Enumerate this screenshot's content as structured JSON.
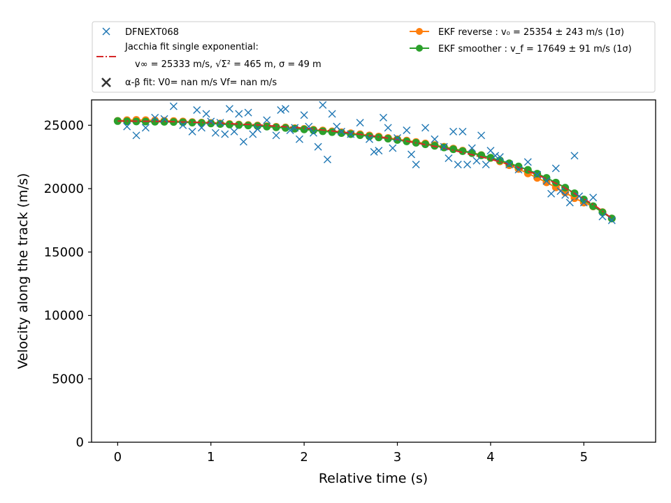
{
  "chart_data": {
    "type": "scatter",
    "xlabel": "Relative time (s)",
    "ylabel": "Velocity along the track (m/s)",
    "xlim": [
      -0.28,
      5.77
    ],
    "ylim": [
      0,
      27000
    ],
    "xticks": [
      0,
      1,
      2,
      3,
      4,
      5
    ],
    "yticks": [
      0,
      5000,
      10000,
      15000,
      20000,
      25000
    ],
    "grid": false,
    "legend_position": "top",
    "legend": {
      "dfn_label": "DFNEXT068",
      "jacchia_line1": "Jacchia fit single exponential:",
      "jacchia_line2": "v∞ = 25333 m/s, √Σ² = 465 m, σ = 49 m",
      "alphabeta_label": "α-β fit: V0= nan m/s   Vf= nan m/s",
      "ekf_reverse_label": "EKF reverse : v₀ =  25354 ± 243 m/s (1σ)",
      "ekf_smoother_label": "EKF smoother : v_f =  17649 ± 91 m/s (1σ)"
    },
    "colors": {
      "dfn": "#1f77b4",
      "jacchia": "#d62728",
      "ekf_reverse": "#ff7f0e",
      "ekf_smoother": "#2ca02c",
      "alphabeta": "#333333"
    },
    "series": [
      {
        "name": "DFNEXT068",
        "marker": "x",
        "points": [
          [
            0.1,
            24900
          ],
          [
            0.2,
            24200
          ],
          [
            0.3,
            24800
          ],
          [
            0.4,
            25600
          ],
          [
            0.5,
            25500
          ],
          [
            0.6,
            26500
          ],
          [
            0.7,
            25000
          ],
          [
            0.8,
            24500
          ],
          [
            0.85,
            26200
          ],
          [
            0.9,
            24800
          ],
          [
            0.95,
            25900
          ],
          [
            1.0,
            25300
          ],
          [
            1.05,
            24400
          ],
          [
            1.1,
            25200
          ],
          [
            1.15,
            24300
          ],
          [
            1.2,
            26300
          ],
          [
            1.25,
            24500
          ],
          [
            1.3,
            25900
          ],
          [
            1.35,
            23700
          ],
          [
            1.4,
            26000
          ],
          [
            1.45,
            24300
          ],
          [
            1.5,
            24700
          ],
          [
            1.6,
            25400
          ],
          [
            1.7,
            24200
          ],
          [
            1.75,
            26200
          ],
          [
            1.8,
            26300
          ],
          [
            1.85,
            24600
          ],
          [
            1.9,
            24800
          ],
          [
            1.95,
            23900
          ],
          [
            2.0,
            25800
          ],
          [
            2.05,
            24900
          ],
          [
            2.1,
            24400
          ],
          [
            2.15,
            23300
          ],
          [
            2.2,
            26600
          ],
          [
            2.25,
            22300
          ],
          [
            2.3,
            25900
          ],
          [
            2.35,
            24900
          ],
          [
            2.4,
            24500
          ],
          [
            2.5,
            24300
          ],
          [
            2.6,
            25200
          ],
          [
            2.7,
            23900
          ],
          [
            2.75,
            22900
          ],
          [
            2.8,
            23000
          ],
          [
            2.85,
            25600
          ],
          [
            2.9,
            24800
          ],
          [
            2.95,
            23200
          ],
          [
            3.0,
            24000
          ],
          [
            3.1,
            24600
          ],
          [
            3.15,
            22700
          ],
          [
            3.2,
            21900
          ],
          [
            3.3,
            24800
          ],
          [
            3.4,
            23900
          ],
          [
            3.5,
            23300
          ],
          [
            3.55,
            22400
          ],
          [
            3.6,
            24500
          ],
          [
            3.65,
            21900
          ],
          [
            3.7,
            24500
          ],
          [
            3.75,
            21900
          ],
          [
            3.8,
            23200
          ],
          [
            3.85,
            22200
          ],
          [
            3.9,
            24200
          ],
          [
            3.95,
            21900
          ],
          [
            4.0,
            23000
          ],
          [
            4.05,
            22600
          ],
          [
            4.1,
            22500
          ],
          [
            4.2,
            21900
          ],
          [
            4.3,
            21500
          ],
          [
            4.4,
            22100
          ],
          [
            4.5,
            21100
          ],
          [
            4.6,
            20600
          ],
          [
            4.65,
            19600
          ],
          [
            4.7,
            21600
          ],
          [
            4.75,
            19800
          ],
          [
            4.8,
            19500
          ],
          [
            4.85,
            18900
          ],
          [
            4.9,
            22600
          ],
          [
            4.95,
            19400
          ],
          [
            5.0,
            18900
          ],
          [
            5.1,
            19300
          ],
          [
            5.2,
            17800
          ],
          [
            5.3,
            17500
          ]
        ]
      },
      {
        "name": "Jacchia fit single exponential",
        "marker": "dashdot",
        "points": [
          [
            0,
            25333
          ],
          [
            0.5,
            25300
          ],
          [
            1.0,
            25200
          ],
          [
            1.5,
            25030
          ],
          [
            2.0,
            24780
          ],
          [
            2.5,
            24390
          ],
          [
            3.0,
            23880
          ],
          [
            3.5,
            23200
          ],
          [
            4.0,
            22330
          ],
          [
            4.25,
            21800
          ],
          [
            4.5,
            21100
          ],
          [
            4.75,
            20250
          ],
          [
            5.0,
            19200
          ],
          [
            5.15,
            18500
          ],
          [
            5.3,
            17649
          ]
        ]
      },
      {
        "name": "EKF reverse",
        "marker": "o",
        "points": [
          [
            0,
            25350
          ],
          [
            0.1,
            25400
          ],
          [
            0.2,
            25420
          ],
          [
            0.3,
            25400
          ],
          [
            0.4,
            25380
          ],
          [
            0.5,
            25350
          ],
          [
            0.6,
            25330
          ],
          [
            0.7,
            25300
          ],
          [
            0.8,
            25250
          ],
          [
            0.9,
            25210
          ],
          [
            1.0,
            25180
          ],
          [
            1.1,
            25140
          ],
          [
            1.2,
            25100
          ],
          [
            1.3,
            25060
          ],
          [
            1.4,
            25020
          ],
          [
            1.5,
            24980
          ],
          [
            1.6,
            24930
          ],
          [
            1.7,
            24880
          ],
          [
            1.8,
            24830
          ],
          [
            1.9,
            24770
          ],
          [
            2.0,
            24710
          ],
          [
            2.1,
            24650
          ],
          [
            2.2,
            24590
          ],
          [
            2.3,
            24520
          ],
          [
            2.4,
            24450
          ],
          [
            2.5,
            24370
          ],
          [
            2.6,
            24290
          ],
          [
            2.7,
            24200
          ],
          [
            2.8,
            24110
          ],
          [
            2.9,
            24000
          ],
          [
            3.0,
            23900
          ],
          [
            3.1,
            23790
          ],
          [
            3.2,
            23680
          ],
          [
            3.3,
            23560
          ],
          [
            3.4,
            23440
          ],
          [
            3.5,
            23300
          ],
          [
            3.6,
            23160
          ],
          [
            3.7,
            23000
          ],
          [
            3.8,
            22840
          ],
          [
            3.9,
            22650
          ],
          [
            4.0,
            22420
          ],
          [
            4.1,
            22150
          ],
          [
            4.2,
            21850
          ],
          [
            4.3,
            21550
          ],
          [
            4.4,
            21200
          ],
          [
            4.5,
            20850
          ],
          [
            4.6,
            20500
          ],
          [
            4.7,
            20100
          ],
          [
            4.8,
            19700
          ],
          [
            4.9,
            19250
          ],
          [
            5.0,
            18900
          ],
          [
            5.1,
            18600
          ],
          [
            5.2,
            18150
          ],
          [
            5.3,
            17649
          ]
        ]
      },
      {
        "name": "EKF smoother",
        "marker": "o",
        "points": [
          [
            0,
            25330
          ],
          [
            0.1,
            25310
          ],
          [
            0.2,
            25300
          ],
          [
            0.3,
            25290
          ],
          [
            0.4,
            25280
          ],
          [
            0.5,
            25270
          ],
          [
            0.6,
            25260
          ],
          [
            0.7,
            25240
          ],
          [
            0.8,
            25210
          ],
          [
            0.9,
            25180
          ],
          [
            1.0,
            25140
          ],
          [
            1.1,
            25100
          ],
          [
            1.2,
            25060
          ],
          [
            1.3,
            25020
          ],
          [
            1.4,
            24980
          ],
          [
            1.5,
            24940
          ],
          [
            1.6,
            24890
          ],
          [
            1.7,
            24840
          ],
          [
            1.8,
            24790
          ],
          [
            1.9,
            24730
          ],
          [
            2.0,
            24670
          ],
          [
            2.1,
            24600
          ],
          [
            2.2,
            24530
          ],
          [
            2.3,
            24460
          ],
          [
            2.4,
            24380
          ],
          [
            2.5,
            24300
          ],
          [
            2.6,
            24220
          ],
          [
            2.7,
            24130
          ],
          [
            2.8,
            24040
          ],
          [
            2.9,
            23940
          ],
          [
            3.0,
            23840
          ],
          [
            3.1,
            23730
          ],
          [
            3.2,
            23620
          ],
          [
            3.3,
            23500
          ],
          [
            3.4,
            23380
          ],
          [
            3.5,
            23250
          ],
          [
            3.6,
            23110
          ],
          [
            3.7,
            22960
          ],
          [
            3.8,
            22800
          ],
          [
            3.9,
            22630
          ],
          [
            4.0,
            22440
          ],
          [
            4.1,
            22230
          ],
          [
            4.2,
            22000
          ],
          [
            4.3,
            21750
          ],
          [
            4.4,
            21480
          ],
          [
            4.5,
            21180
          ],
          [
            4.6,
            20850
          ],
          [
            4.7,
            20480
          ],
          [
            4.8,
            20080
          ],
          [
            4.9,
            19640
          ],
          [
            5.0,
            19150
          ],
          [
            5.1,
            18620
          ],
          [
            5.2,
            18130
          ],
          [
            5.3,
            17649
          ]
        ]
      }
    ]
  }
}
